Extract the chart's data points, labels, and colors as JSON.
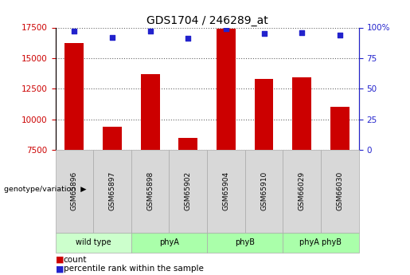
{
  "title": "GDS1704 / 246289_at",
  "samples": [
    "GSM65896",
    "GSM65897",
    "GSM65898",
    "GSM65902",
    "GSM65904",
    "GSM65910",
    "GSM66029",
    "GSM66030"
  ],
  "counts": [
    16200,
    9400,
    13700,
    8450,
    17400,
    13300,
    13400,
    11000
  ],
  "percentile_ranks": [
    97,
    92,
    97,
    91,
    99,
    95,
    96,
    94
  ],
  "ymin": 7500,
  "ymax": 17500,
  "yticks": [
    7500,
    10000,
    12500,
    15000,
    17500
  ],
  "y2min": 0,
  "y2max": 100,
  "y2ticks": [
    0,
    25,
    50,
    75,
    100
  ],
  "bar_color": "#cc0000",
  "dot_color": "#2222cc",
  "groups": [
    {
      "label": "wild type",
      "start": 0,
      "end": 2,
      "color": "#ccffcc"
    },
    {
      "label": "phyA",
      "start": 2,
      "end": 4,
      "color": "#aaffaa"
    },
    {
      "label": "phyB",
      "start": 4,
      "end": 6,
      "color": "#aaffaa"
    },
    {
      "label": "phyA phyB",
      "start": 6,
      "end": 8,
      "color": "#aaffaa"
    }
  ],
  "tick_label_color_left": "#cc0000",
  "tick_label_color_right": "#2222cc",
  "legend_count_color": "#cc0000",
  "legend_pct_color": "#2222cc",
  "sample_box_color": "#d8d8d8",
  "sample_box_border": "#aaaaaa",
  "group_box_border": "#aaaaaa",
  "fig_width": 5.15,
  "fig_height": 3.45,
  "dpi": 100
}
